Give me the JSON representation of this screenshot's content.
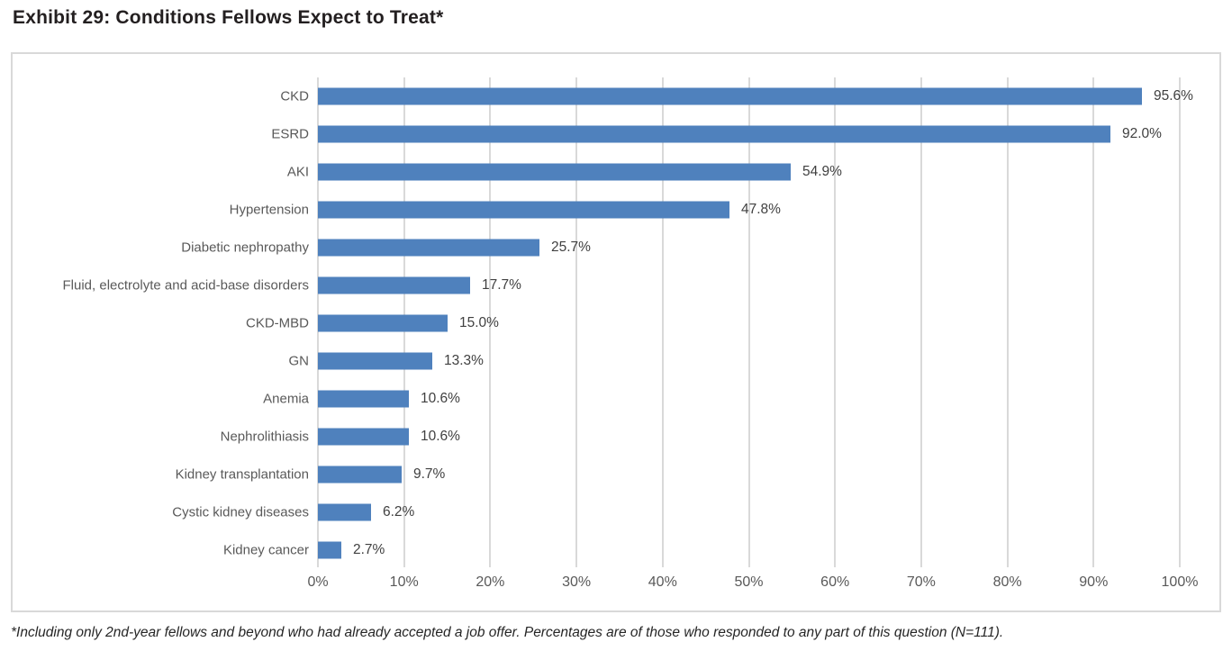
{
  "title": "Exhibit 29: Conditions Fellows Expect to Treat*",
  "footnote": "*Including only 2nd-year fellows and beyond who had already accepted a job offer. Percentages are of those who responded to any part of this question (N=111).",
  "colors": {
    "bar": "#4f81bd",
    "gridline": "#d9d9d9",
    "category_label": "#595959",
    "value_label": "#404040",
    "title_text": "#231f20"
  },
  "chart_data": {
    "type": "bar",
    "orientation": "horizontal",
    "title": "Exhibit 29: Conditions Fellows Expect to Treat*",
    "xlabel": "",
    "ylabel": "",
    "xlim": [
      0,
      100
    ],
    "grid": "vertical",
    "legend": "none",
    "categories": [
      "CKD",
      "ESRD",
      "AKI",
      "Hypertension",
      "Diabetic nephropathy",
      "Fluid, electrolyte and acid-base disorders",
      "CKD-MBD",
      "GN",
      "Anemia",
      "Nephrolithiasis",
      "Kidney transplantation",
      "Cystic kidney diseases",
      "Kidney cancer"
    ],
    "values": [
      95.6,
      92.0,
      54.9,
      47.8,
      25.7,
      17.7,
      15.0,
      13.3,
      10.6,
      10.6,
      9.7,
      6.2,
      2.7
    ],
    "value_labels": [
      "95.6%",
      "92.0%",
      "54.9%",
      "47.8%",
      "25.7%",
      "17.7%",
      "15.0%",
      "13.3%",
      "10.6%",
      "10.6%",
      "9.7%",
      "6.2%",
      "2.7%"
    ],
    "x_ticks": [
      "0%",
      "10%",
      "20%",
      "30%",
      "40%",
      "50%",
      "60%",
      "70%",
      "80%",
      "90%",
      "100%"
    ]
  }
}
